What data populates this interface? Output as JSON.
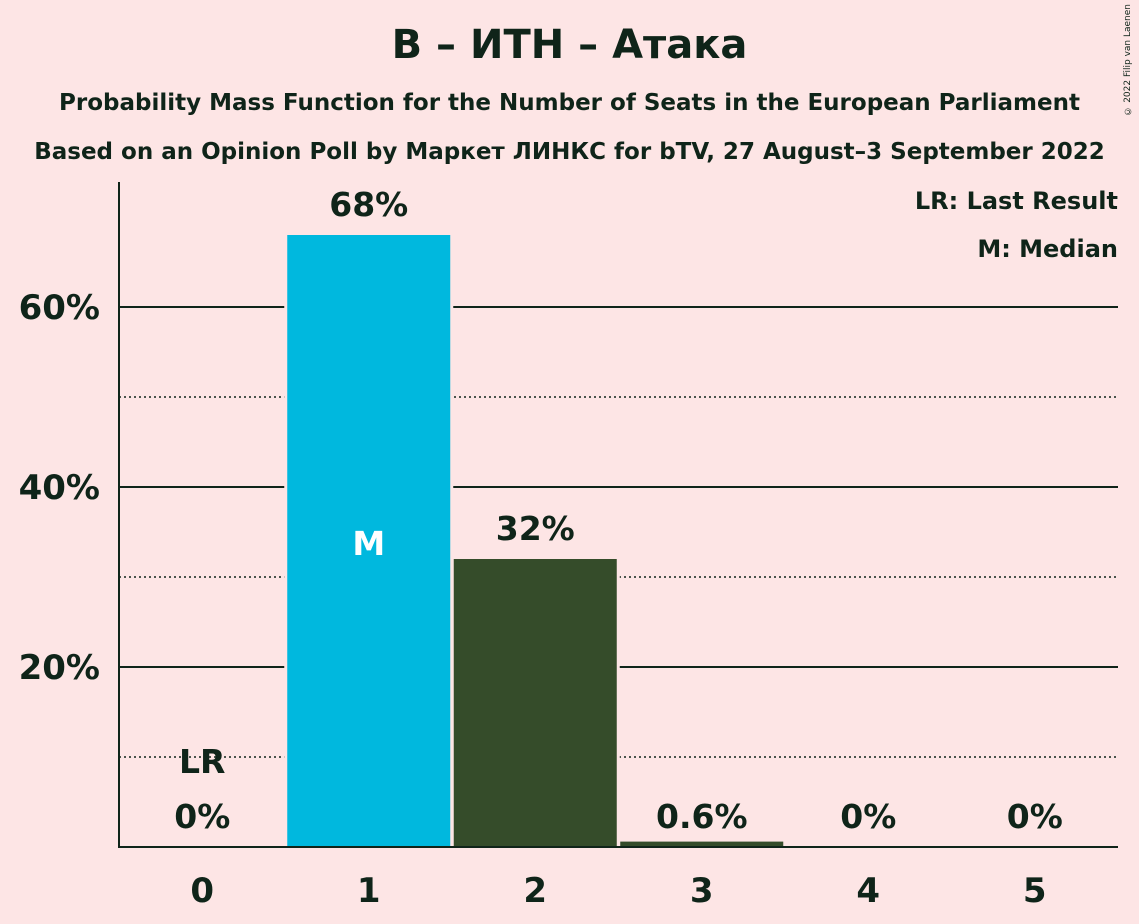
{
  "title": "В – ИТН – Атака",
  "subtitle1": "Probability Mass Function for the Number of Seats in the European Parliament",
  "subtitle2": "Based on an Opinion Poll by Маркет ЛИНКС for bTV, 27 August–3 September 2022",
  "copyright": "© 2022 Filip van Laenen",
  "legend": {
    "last_result": "LR: Last Result",
    "median": "M: Median"
  },
  "chart_data": {
    "type": "bar",
    "title": "В – ИТН – Атака",
    "categories": [
      "0",
      "1",
      "2",
      "3",
      "4",
      "5"
    ],
    "values": [
      0,
      68,
      32,
      0.6,
      0,
      0
    ],
    "value_labels": [
      "0%",
      "68%",
      "32%",
      "0.6%",
      "0%",
      "0%"
    ],
    "yticks": [
      {
        "value": 20,
        "label": "20%"
      },
      {
        "value": 40,
        "label": "40%"
      },
      {
        "value": 60,
        "label": "60%"
      }
    ],
    "minor_gridlines": [
      10,
      30,
      50
    ],
    "ylim": [
      0,
      73.5
    ],
    "last_result_category": "0",
    "last_result_label": "LR",
    "median_category": "1",
    "median_label": "M",
    "colors": {
      "median_bar": "#00B8DE",
      "other_bar": "#354C2A",
      "text": "#0F2419",
      "background": "#FDE5E5"
    },
    "legend_position": "top-right",
    "grid": true
  }
}
